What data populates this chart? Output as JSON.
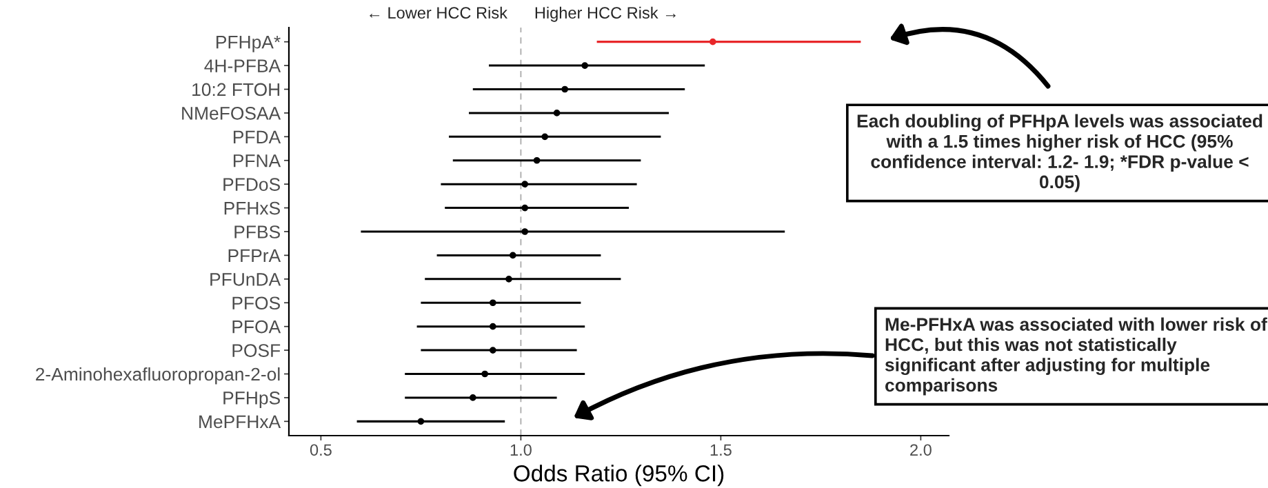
{
  "chart_data": {
    "type": "scatter",
    "orientation": "horizontal",
    "categories": [
      "PFHpA*",
      "4H-PFBA",
      "10:2 FTOH",
      "NMeFOSAA",
      "PFDA",
      "PFNA",
      "PFDoS",
      "PFHxS",
      "PFBS",
      "PFPrA",
      "PFUnDA",
      "PFOS",
      "PFOA",
      "POSF",
      "2-Aminohexafluoropropan-2-ol",
      "PFHpS",
      "MePFHxA"
    ],
    "values": [
      1.48,
      1.16,
      1.11,
      1.09,
      1.06,
      1.04,
      1.01,
      1.01,
      1.01,
      0.98,
      0.97,
      0.93,
      0.93,
      0.93,
      0.91,
      0.88,
      0.75
    ],
    "errors": [
      [
        1.19,
        1.85
      ],
      [
        0.92,
        1.46
      ],
      [
        0.88,
        1.41
      ],
      [
        0.87,
        1.37
      ],
      [
        0.82,
        1.35
      ],
      [
        0.83,
        1.3
      ],
      [
        0.8,
        1.29
      ],
      [
        0.81,
        1.27
      ],
      [
        0.6,
        1.66
      ],
      [
        0.79,
        1.2
      ],
      [
        0.76,
        1.25
      ],
      [
        0.75,
        1.15
      ],
      [
        0.74,
        1.16
      ],
      [
        0.75,
        1.14
      ],
      [
        0.71,
        1.16
      ],
      [
        0.71,
        1.09
      ],
      [
        0.59,
        0.96
      ]
    ],
    "colors": [
      "#e8272a",
      "#000000",
      "#000000",
      "#000000",
      "#000000",
      "#000000",
      "#000000",
      "#000000",
      "#000000",
      "#000000",
      "#000000",
      "#000000",
      "#000000",
      "#000000",
      "#000000",
      "#000000",
      "#000000"
    ],
    "xlim": [
      0.42,
      2.07
    ],
    "xticks": [
      {
        "value": 0.5,
        "label": "0.5"
      },
      {
        "value": 1.0,
        "label": "1.0"
      },
      {
        "value": 1.5,
        "label": "1.5"
      },
      {
        "value": 2.0,
        "label": "2.0"
      }
    ],
    "xlabel": "Odds Ratio (95% CI)",
    "ref_lines": [
      {
        "axis": "x",
        "value": 1.0,
        "color": "#aaaaaa",
        "line_style": "dashed"
      }
    ],
    "grid": false,
    "marker": "circle",
    "annotations": [
      "← Lower HCC Risk",
      "Higher HCC Risk →",
      "Each doubling of PFHpA levels was associated with a 1.5 times higher risk of HCC (95% confidence interval: 1.2- 1.9; *FDR p-value < 0.05)",
      "Me-PFHxA was associated with lower risk of HCC, but this was not statistically significant after adjusting for multiple comparisons"
    ]
  }
}
